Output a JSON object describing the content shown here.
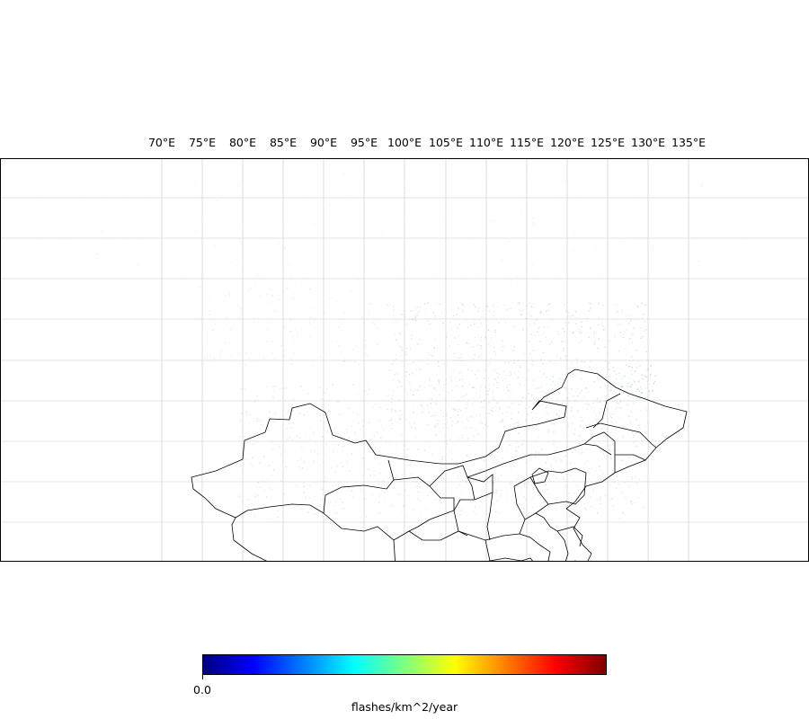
{
  "map": {
    "longitude_labels": [
      "70°E",
      "75°E",
      "80°E",
      "85°E",
      "90°E",
      "95°E",
      "100°E",
      "105°E",
      "110°E",
      "115°E",
      "120°E",
      "125°E",
      "130°E",
      "135°E"
    ],
    "colors": {
      "frame": "#000000",
      "gridline": "#c8c8c8",
      "boundary": "#000000",
      "density": "#6fa8dc"
    }
  },
  "colorbar": {
    "colormap": "jet",
    "colors": [
      "#00007f",
      "#0000ff",
      "#007fff",
      "#00ffff",
      "#7fff7f",
      "#ffff00",
      "#ff7f00",
      "#ff0000",
      "#7f0000"
    ],
    "tick_labels": [
      "0.0"
    ],
    "label": "flashes/km^2/year"
  }
}
